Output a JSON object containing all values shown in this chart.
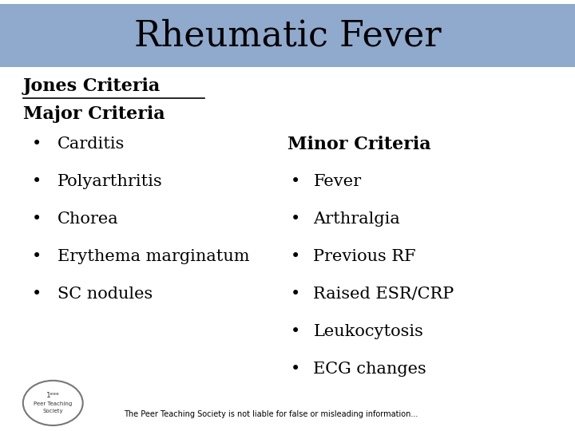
{
  "title": "Rheumatic Fever",
  "title_bg_color": "#8faacc",
  "title_fontsize": 32,
  "title_font": "serif",
  "bg_color": "#ffffff",
  "jones_label": "Jones Criteria",
  "major_label": "Major Criteria",
  "major_items": [
    "Carditis",
    "Polyarthritis",
    "Chorea",
    "Erythema marginatum",
    "SC nodules"
  ],
  "minor_label": "Minor Criteria",
  "minor_items": [
    "Fever",
    "Arthralgia",
    "Previous RF",
    "Raised ESR/CRP",
    "Leukocytosis",
    "ECG changes"
  ],
  "footer": "The Peer Teaching Society is not liable for false or misleading information...",
  "text_color": "#000000",
  "bullet": "•"
}
